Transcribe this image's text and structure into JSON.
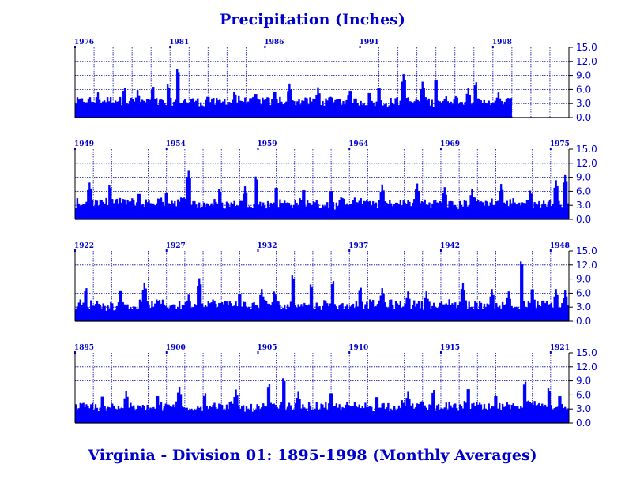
{
  "title": "Precipitation (Inches)",
  "footer": "Virginia - Division 01:  1895-1998 (Monthly Averages)",
  "colors": {
    "fill": "#0000ff",
    "text": "#0000cc",
    "grid": "#0000aa",
    "axis": "#000000"
  },
  "chart_data": {
    "type": "area",
    "ylabel": "",
    "ylim": [
      0,
      15
    ],
    "yticks": [
      "0.0",
      "3.0",
      "6.0",
      "9.0",
      "12.0",
      "15.0"
    ],
    "grid": true,
    "panels": [
      {
        "id": "1976-2002",
        "start_year": 1976,
        "end_year": 2002,
        "year_labels": [
          {
            "year": 1976,
            "text": "1976"
          },
          {
            "year": 1981,
            "text": "1981"
          },
          {
            "year": 1986,
            "text": "1986"
          },
          {
            "year": 1991,
            "text": "1991"
          },
          {
            "year": 1998,
            "text": "1998"
          }
        ],
        "data_end_year": 1998.99,
        "peaks": [
          [
            1977.2,
            5.5
          ],
          [
            1978.6,
            6.8
          ],
          [
            1979.3,
            6.0
          ],
          [
            1980.1,
            7.0
          ],
          [
            1980.9,
            7.5
          ],
          [
            1981.4,
            10.8
          ],
          [
            1983.0,
            5.2
          ],
          [
            1984.4,
            6.0
          ],
          [
            1985.5,
            5.8
          ],
          [
            1986.5,
            6.2
          ],
          [
            1987.3,
            7.4
          ],
          [
            1988.8,
            6.6
          ],
          [
            1990.5,
            6.5
          ],
          [
            1991.5,
            6.0
          ],
          [
            1992.0,
            7.0
          ],
          [
            1993.3,
            9.4
          ],
          [
            1994.3,
            7.8
          ],
          [
            1995.0,
            8.7
          ],
          [
            1996.7,
            6.5
          ],
          [
            1997.1,
            8.0
          ],
          [
            1998.3,
            5.5
          ]
        ]
      },
      {
        "id": "1949-1975",
        "start_year": 1949,
        "end_year": 1976,
        "year_labels": [
          {
            "year": 1949,
            "text": "1949"
          },
          {
            "year": 1954,
            "text": "1954"
          },
          {
            "year": 1959,
            "text": "1959"
          },
          {
            "year": 1964,
            "text": "1964"
          },
          {
            "year": 1969,
            "text": "1969"
          },
          {
            "year": 1975,
            "text": "1975"
          }
        ],
        "data_end_year": 1975.99,
        "peaks": [
          [
            1949.8,
            8.0
          ],
          [
            1950.9,
            7.8
          ],
          [
            1952.5,
            6.2
          ],
          [
            1954.0,
            6.5
          ],
          [
            1955.2,
            10.5
          ],
          [
            1956.9,
            7.0
          ],
          [
            1958.3,
            7.2
          ],
          [
            1958.9,
            9.6
          ],
          [
            1960.0,
            7.5
          ],
          [
            1961.5,
            7.0
          ],
          [
            1963.0,
            6.8
          ],
          [
            1965.8,
            7.6
          ],
          [
            1967.7,
            7.8
          ],
          [
            1969.2,
            7.0
          ],
          [
            1970.7,
            6.6
          ],
          [
            1972.3,
            7.7
          ],
          [
            1973.9,
            6.6
          ],
          [
            1975.3,
            8.5
          ],
          [
            1975.8,
            9.6
          ]
        ]
      },
      {
        "id": "1922-1948",
        "start_year": 1922,
        "end_year": 1949,
        "year_labels": [
          {
            "year": 1922,
            "text": "1922"
          },
          {
            "year": 1927,
            "text": "1927"
          },
          {
            "year": 1932,
            "text": "1932"
          },
          {
            "year": 1937,
            "text": "1937"
          },
          {
            "year": 1942,
            "text": "1942"
          },
          {
            "year": 1948,
            "text": "1948"
          }
        ],
        "data_end_year": 1948.99,
        "peaks": [
          [
            1922.6,
            7.5
          ],
          [
            1924.5,
            7.2
          ],
          [
            1925.8,
            8.4
          ],
          [
            1928.2,
            5.8
          ],
          [
            1928.8,
            9.3
          ],
          [
            1931.0,
            6.5
          ],
          [
            1932.2,
            7.0
          ],
          [
            1932.9,
            6.8
          ],
          [
            1933.9,
            10.2
          ],
          [
            1934.9,
            8.3
          ],
          [
            1936.1,
            9.0
          ],
          [
            1937.6,
            7.6
          ],
          [
            1938.8,
            7.2
          ],
          [
            1940.2,
            6.5
          ],
          [
            1941.2,
            6.5
          ],
          [
            1943.2,
            8.3
          ],
          [
            1944.8,
            7.0
          ],
          [
            1945.7,
            6.5
          ],
          [
            1946.4,
            13.2
          ],
          [
            1947.0,
            7.6
          ],
          [
            1948.3,
            7.0
          ],
          [
            1948.8,
            6.7
          ]
        ]
      },
      {
        "id": "1895-1921",
        "start_year": 1895,
        "end_year": 1922,
        "year_labels": [
          {
            "year": 1895,
            "text": "1895"
          },
          {
            "year": 1900,
            "text": "1900"
          },
          {
            "year": 1905,
            "text": "1905"
          },
          {
            "year": 1910,
            "text": "1910"
          },
          {
            "year": 1915,
            "text": "1915"
          },
          {
            "year": 1921,
            "text": "1921"
          }
        ],
        "data_end_year": 1921.99,
        "peaks": [
          [
            1896.5,
            6.4
          ],
          [
            1897.8,
            7.0
          ],
          [
            1899.5,
            6.5
          ],
          [
            1900.7,
            7.9
          ],
          [
            1902.1,
            6.8
          ],
          [
            1903.8,
            7.3
          ],
          [
            1905.6,
            8.8
          ],
          [
            1906.4,
            10.0
          ],
          [
            1907.2,
            6.8
          ],
          [
            1909.0,
            7.1
          ],
          [
            1911.5,
            6.3
          ],
          [
            1913.2,
            6.8
          ],
          [
            1914.6,
            7.5
          ],
          [
            1916.5,
            8.0
          ],
          [
            1918.0,
            6.5
          ],
          [
            1919.6,
            9.3
          ],
          [
            1920.9,
            8.0
          ],
          [
            1921.5,
            6.5
          ]
        ]
      }
    ]
  }
}
